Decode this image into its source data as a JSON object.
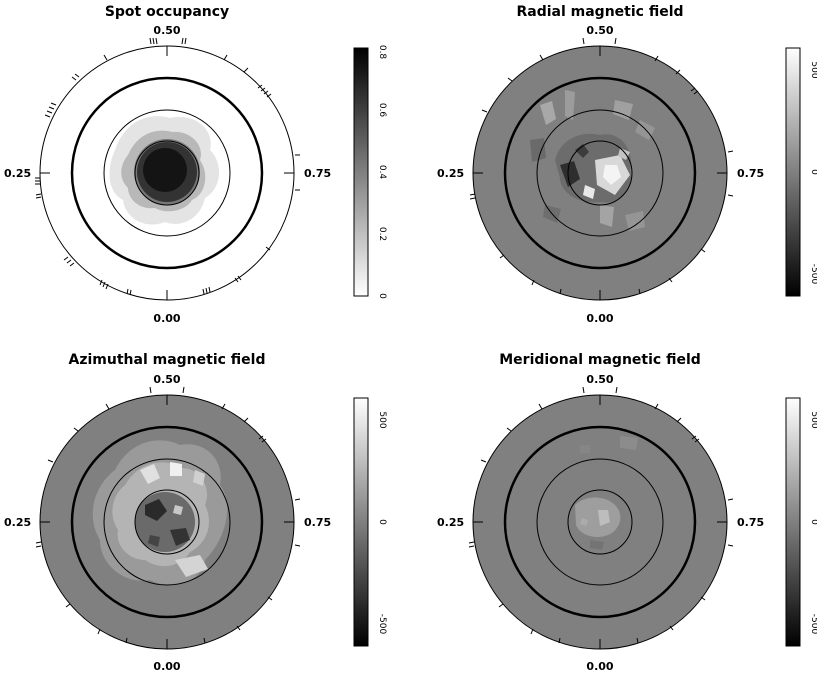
{
  "panels": [
    {
      "title": "Spot occupancy",
      "phase_top": "0.50",
      "phase_left": "0.25",
      "phase_right": "0.75",
      "phase_bottom": "0.00",
      "colorbar_ticks": [
        "0",
        "0.2",
        "0.4",
        "0.6",
        "0.8"
      ],
      "colorbar_range": [
        0,
        0.8
      ]
    },
    {
      "title": "Radial magnetic field",
      "phase_top": "0.50",
      "phase_left": "0.25",
      "phase_right": "0.75",
      "phase_bottom": "0.00",
      "colorbar_ticks": [
        "-500",
        "0",
        "500"
      ],
      "colorbar_range": [
        -600,
        600
      ]
    },
    {
      "title": "Azimuthal magnetic field",
      "phase_top": "0.50",
      "phase_left": "0.25",
      "phase_right": "0.75",
      "phase_bottom": "0.00",
      "colorbar_ticks": [
        "-500",
        "0",
        "500"
      ],
      "colorbar_range": [
        -600,
        600
      ]
    },
    {
      "title": "Meridional magnetic field",
      "phase_top": "0.50",
      "phase_left": "0.25",
      "phase_right": "0.75",
      "phase_bottom": "0.00",
      "colorbar_ticks": [
        "-500",
        "0",
        "500"
      ],
      "colorbar_range": [
        -600,
        600
      ]
    }
  ]
}
